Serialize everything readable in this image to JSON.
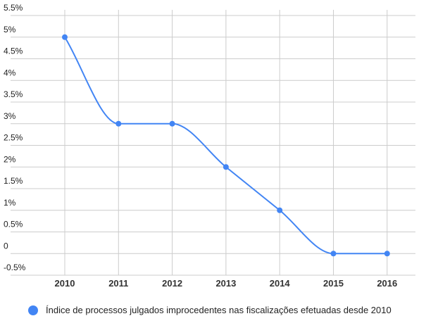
{
  "chart_data": {
    "type": "line",
    "categories": [
      "2010",
      "2011",
      "2012",
      "2013",
      "2014",
      "2015",
      "2016"
    ],
    "series": [
      {
        "name": "Índice de processos julgados improcedentes nas fiscalizações efetuadas desde 2010",
        "color": "#4285f4",
        "values": [
          5,
          3,
          3,
          2,
          1,
          0,
          0
        ]
      }
    ],
    "ylim": [
      -0.5,
      5.5
    ],
    "yticks": [
      {
        "value": -0.5,
        "label": "-0.5%"
      },
      0,
      {
        "value": 0.5,
        "label": "0.5%"
      },
      {
        "value": 1,
        "label": "1%"
      },
      {
        "value": 1.5,
        "label": "1.5%"
      },
      {
        "value": 2,
        "label": "2%"
      },
      {
        "value": 2.5,
        "label": "2.5%"
      },
      {
        "value": 3,
        "label": "3%"
      },
      {
        "value": 3.5,
        "label": "3.5%"
      },
      {
        "value": 4,
        "label": "4%"
      },
      {
        "value": 4.5,
        "label": "4.5%"
      },
      {
        "value": 5,
        "label": "5%"
      },
      {
        "value": 5.5,
        "label": "5.5%"
      }
    ],
    "grid": true,
    "smooth": true,
    "legend": "bottom"
  }
}
